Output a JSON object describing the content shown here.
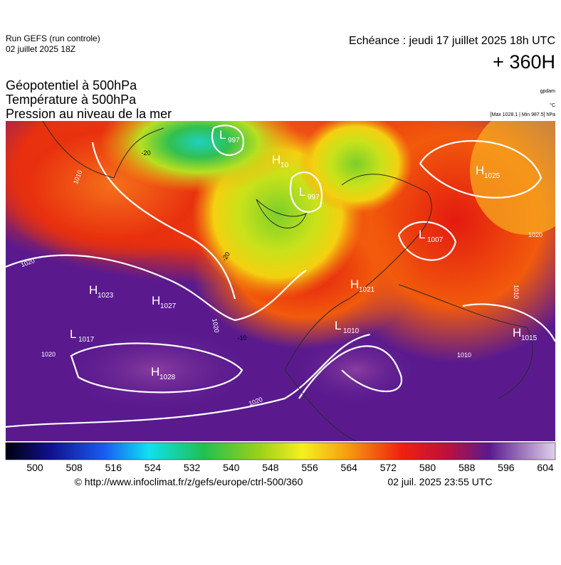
{
  "header": {
    "run": "Run GEFS (run controle)",
    "run_date": "02 juillet 2025 18Z",
    "echeance": "Echéance : jeudi 17 juillet 2025 18h UTC",
    "lead": "+ 360H",
    "fields": [
      "Géopotentiel à 500hPa",
      "Température à 500hPa",
      "Pression au niveau de la mer"
    ],
    "units": [
      "gpdam",
      "°C",
      "[Max 1028.1 | Min 987.5] hPa"
    ]
  },
  "centers": [
    {
      "type": "L",
      "value": "997"
    },
    {
      "type": "H",
      "value": "10"
    },
    {
      "type": "L",
      "value": "997"
    },
    {
      "type": "H",
      "value": "1025"
    },
    {
      "type": "L",
      "value": "1007"
    },
    {
      "type": "H",
      "value": "1023"
    },
    {
      "type": "H",
      "value": "1027"
    },
    {
      "type": "H",
      "value": "1021"
    },
    {
      "type": "L",
      "value": "1010"
    },
    {
      "type": "L",
      "value": "1017"
    },
    {
      "type": "H",
      "value": "1015"
    },
    {
      "type": "H",
      "value": "1028"
    }
  ],
  "contour_labels": [
    "1010",
    "1020",
    "1020",
    "1020",
    "1020",
    "1020",
    "1010",
    "1010",
    "-20",
    "-20",
    "-10"
  ],
  "colorbar": {
    "ticks": [
      "500",
      "508",
      "516",
      "524",
      "532",
      "540",
      "548",
      "556",
      "564",
      "572",
      "580",
      "588",
      "596",
      "604"
    ]
  },
  "footer": {
    "url": "© http://www.infoclimat.fr/z/gefs/europe/ctrl-500/360",
    "time": "02 juil. 2025 23:55 UTC"
  }
}
